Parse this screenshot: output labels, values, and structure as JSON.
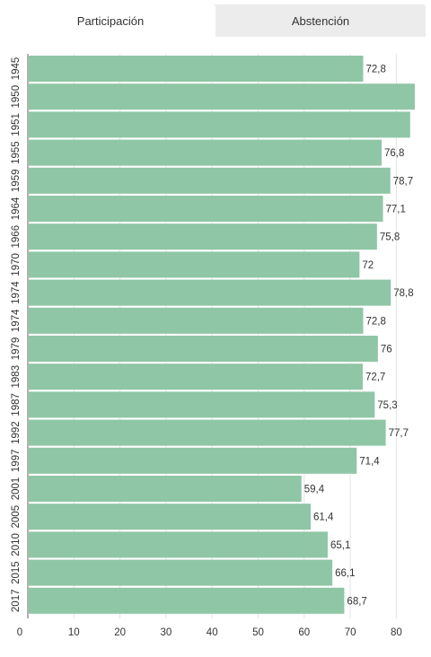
{
  "tabs": [
    {
      "label": "Participación",
      "active": true
    },
    {
      "label": "Abstención",
      "active": false
    }
  ],
  "chart_data": {
    "type": "bar",
    "orientation": "horizontal",
    "categories": [
      "1945",
      "1950",
      "1951",
      "1955",
      "1959",
      "1964",
      "1966",
      "1970",
      "1974",
      "1974",
      "1979",
      "1983",
      "1987",
      "1992",
      "1997",
      "2001",
      "2005",
      "2010",
      "2015",
      "2017"
    ],
    "values": [
      72.8,
      84.0,
      83.0,
      76.8,
      78.7,
      77.1,
      75.8,
      72.0,
      78.8,
      72.8,
      76.0,
      72.7,
      75.3,
      77.7,
      71.4,
      59.4,
      61.4,
      65.1,
      66.1,
      68.7
    ],
    "value_labels": [
      "72,8",
      "",
      "",
      "76,8",
      "78,7",
      "77,1",
      "75,8",
      "72",
      "78,8",
      "72,8",
      "76",
      "72,7",
      "75,3",
      "77,7",
      "71,4",
      "59,4",
      "61,4",
      "65,1",
      "66,1",
      "68,7"
    ],
    "x_ticks": [
      0,
      10,
      20,
      30,
      40,
      50,
      60,
      70,
      80
    ],
    "xlim": [
      0,
      84.5
    ],
    "grid": true,
    "bar_color": "#8fc6a5"
  }
}
